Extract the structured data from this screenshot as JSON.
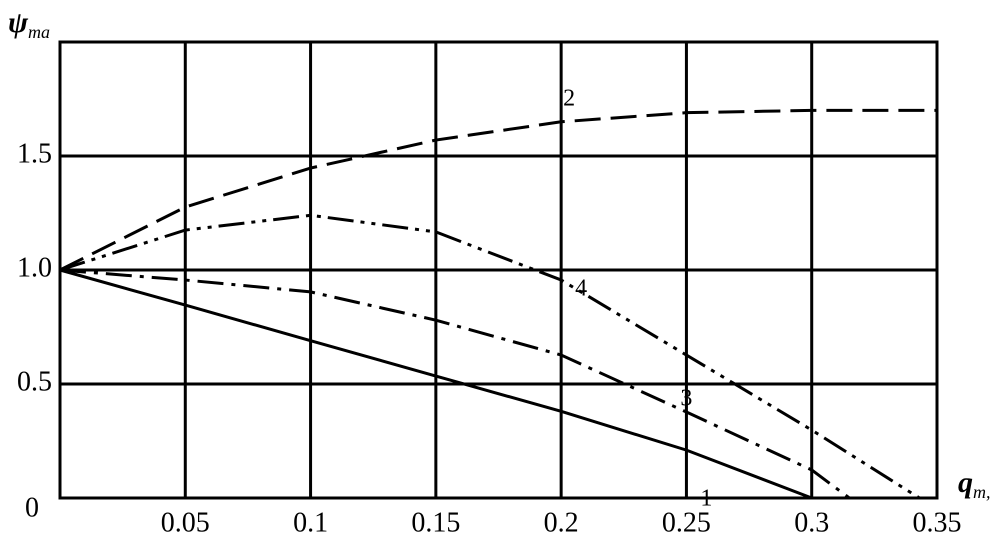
{
  "chart_data": {
    "type": "line",
    "y_label": {
      "text": "ψ",
      "sub": "ma"
    },
    "x_label": {
      "text": "q",
      "sub": "m,"
    },
    "xlim": [
      0,
      0.35
    ],
    "ylim": [
      0,
      2
    ],
    "xticks": [
      0.05,
      0.1,
      0.15,
      0.2,
      0.25,
      0.3,
      0.35
    ],
    "yticks": [
      0,
      0.5,
      {
        "value": 1,
        "label": "1.0"
      },
      1.5
    ],
    "grid": true,
    "series": [
      {
        "name": "1",
        "color": "#000000",
        "dash": "solid",
        "x": [
          0,
          0.05,
          0.1,
          0.15,
          0.2,
          0.25,
          0.3
        ],
        "values": [
          1.0,
          0.846,
          0.69,
          0.535,
          0.38,
          0.21,
          0
        ]
      },
      {
        "name": "2",
        "color": "#000000",
        "dash": "dash",
        "x": [
          0,
          0.05,
          0.1,
          0.15,
          0.2,
          0.25,
          0.3,
          0.35
        ],
        "values": [
          1.0,
          1.276,
          1.447,
          1.57,
          1.65,
          1.69,
          1.7,
          1.7
        ]
      },
      {
        "name": "3",
        "color": "#000000",
        "dash": "dashdot",
        "x": [
          0,
          0.05,
          0.1,
          0.15,
          0.2,
          0.25,
          0.3,
          0.315
        ],
        "values": [
          1.0,
          0.956,
          0.904,
          0.78,
          0.627,
          0.377,
          0.123,
          0
        ]
      },
      {
        "name": "4",
        "color": "#000000",
        "dash": "dashdotdot",
        "x": [
          0,
          0.05,
          0.1,
          0.15,
          0.2,
          0.25,
          0.3,
          0.343
        ],
        "values": [
          1.0,
          1.175,
          1.24,
          1.167,
          0.956,
          0.627,
          0.298,
          0
        ]
      }
    ]
  }
}
